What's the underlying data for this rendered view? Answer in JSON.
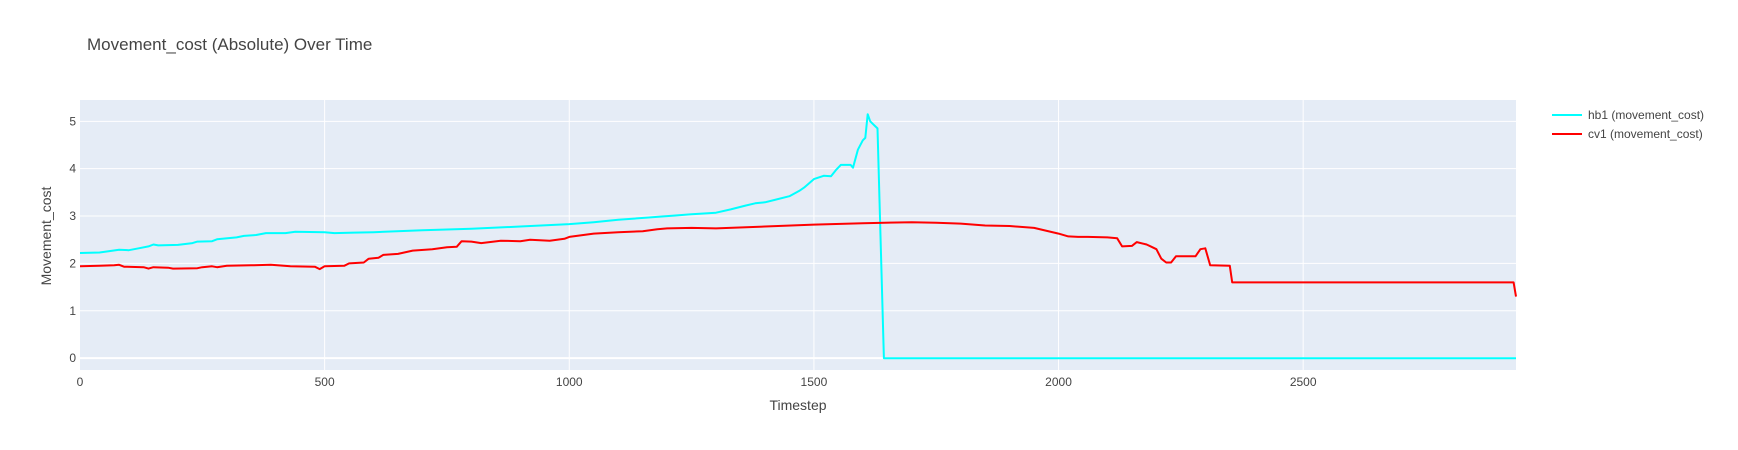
{
  "chart_data": {
    "type": "line",
    "title": "Movement_cost (Absolute) Over Time",
    "xlabel": "Timestep",
    "ylabel": "Movement_cost",
    "xlim": [
      0,
      2935
    ],
    "ylim": [
      -0.25,
      5.45
    ],
    "x_ticks": [
      0,
      500,
      1000,
      1500,
      2000,
      2500
    ],
    "y_ticks": [
      0,
      1,
      2,
      3,
      4,
      5
    ],
    "grid": true,
    "legend_position": "top-right, outside plot",
    "plot_background": "#E5ECF6",
    "grid_color": "#FFFFFF",
    "series": [
      {
        "name": "hb1 (movement_cost)",
        "color": "#00FFFF",
        "points": [
          [
            0,
            2.22
          ],
          [
            40,
            2.23
          ],
          [
            60,
            2.26
          ],
          [
            80,
            2.29
          ],
          [
            100,
            2.28
          ],
          [
            120,
            2.32
          ],
          [
            140,
            2.36
          ],
          [
            150,
            2.4
          ],
          [
            160,
            2.38
          ],
          [
            200,
            2.39
          ],
          [
            230,
            2.43
          ],
          [
            240,
            2.46
          ],
          [
            270,
            2.47
          ],
          [
            280,
            2.51
          ],
          [
            320,
            2.55
          ],
          [
            335,
            2.58
          ],
          [
            360,
            2.6
          ],
          [
            380,
            2.64
          ],
          [
            420,
            2.64
          ],
          [
            440,
            2.67
          ],
          [
            500,
            2.66
          ],
          [
            520,
            2.64
          ],
          [
            560,
            2.65
          ],
          [
            600,
            2.66
          ],
          [
            700,
            2.7
          ],
          [
            800,
            2.73
          ],
          [
            900,
            2.78
          ],
          [
            1000,
            2.83
          ],
          [
            1050,
            2.87
          ],
          [
            1100,
            2.92
          ],
          [
            1200,
            3.0
          ],
          [
            1250,
            3.04
          ],
          [
            1300,
            3.07
          ],
          [
            1330,
            3.14
          ],
          [
            1360,
            3.22
          ],
          [
            1380,
            3.27
          ],
          [
            1400,
            3.29
          ],
          [
            1420,
            3.34
          ],
          [
            1450,
            3.42
          ],
          [
            1470,
            3.53
          ],
          [
            1480,
            3.6
          ],
          [
            1500,
            3.78
          ],
          [
            1520,
            3.85
          ],
          [
            1535,
            3.84
          ],
          [
            1545,
            3.97
          ],
          [
            1555,
            4.08
          ],
          [
            1575,
            4.08
          ],
          [
            1580,
            4.02
          ],
          [
            1590,
            4.4
          ],
          [
            1600,
            4.6
          ],
          [
            1605,
            4.65
          ],
          [
            1610,
            5.15
          ],
          [
            1615,
            5.0
          ],
          [
            1620,
            4.95
          ],
          [
            1625,
            4.9
          ],
          [
            1630,
            4.85
          ],
          [
            1643,
            0.0
          ],
          [
            2935,
            0.0
          ]
        ]
      },
      {
        "name": "cv1 (movement_cost)",
        "color": "#FF0000",
        "points": [
          [
            0,
            1.94
          ],
          [
            40,
            1.95
          ],
          [
            70,
            1.96
          ],
          [
            80,
            1.97
          ],
          [
            90,
            1.93
          ],
          [
            130,
            1.92
          ],
          [
            140,
            1.89
          ],
          [
            150,
            1.92
          ],
          [
            180,
            1.91
          ],
          [
            190,
            1.89
          ],
          [
            240,
            1.9
          ],
          [
            250,
            1.92
          ],
          [
            270,
            1.94
          ],
          [
            280,
            1.92
          ],
          [
            300,
            1.95
          ],
          [
            350,
            1.96
          ],
          [
            390,
            1.97
          ],
          [
            430,
            1.94
          ],
          [
            480,
            1.93
          ],
          [
            490,
            1.88
          ],
          [
            500,
            1.94
          ],
          [
            540,
            1.95
          ],
          [
            550,
            2.0
          ],
          [
            580,
            2.02
          ],
          [
            590,
            2.1
          ],
          [
            610,
            2.12
          ],
          [
            620,
            2.18
          ],
          [
            650,
            2.2
          ],
          [
            680,
            2.27
          ],
          [
            720,
            2.3
          ],
          [
            750,
            2.34
          ],
          [
            770,
            2.35
          ],
          [
            780,
            2.47
          ],
          [
            800,
            2.46
          ],
          [
            820,
            2.43
          ],
          [
            860,
            2.48
          ],
          [
            900,
            2.47
          ],
          [
            920,
            2.5
          ],
          [
            960,
            2.48
          ],
          [
            990,
            2.52
          ],
          [
            1000,
            2.56
          ],
          [
            1050,
            2.63
          ],
          [
            1100,
            2.66
          ],
          [
            1150,
            2.68
          ],
          [
            1180,
            2.72
          ],
          [
            1200,
            2.74
          ],
          [
            1250,
            2.75
          ],
          [
            1300,
            2.74
          ],
          [
            1400,
            2.78
          ],
          [
            1500,
            2.82
          ],
          [
            1600,
            2.85
          ],
          [
            1700,
            2.87
          ],
          [
            1750,
            2.86
          ],
          [
            1800,
            2.84
          ],
          [
            1850,
            2.8
          ],
          [
            1900,
            2.79
          ],
          [
            1950,
            2.75
          ],
          [
            2000,
            2.63
          ],
          [
            2020,
            2.57
          ],
          [
            2040,
            2.56
          ],
          [
            2060,
            2.56
          ],
          [
            2100,
            2.55
          ],
          [
            2120,
            2.53
          ],
          [
            2130,
            2.36
          ],
          [
            2150,
            2.37
          ],
          [
            2160,
            2.45
          ],
          [
            2180,
            2.4
          ],
          [
            2190,
            2.35
          ],
          [
            2200,
            2.3
          ],
          [
            2210,
            2.1
          ],
          [
            2220,
            2.02
          ],
          [
            2230,
            2.02
          ],
          [
            2240,
            2.15
          ],
          [
            2280,
            2.15
          ],
          [
            2290,
            2.3
          ],
          [
            2300,
            2.32
          ],
          [
            2310,
            1.96
          ],
          [
            2350,
            1.95
          ],
          [
            2355,
            1.6
          ],
          [
            2930,
            1.6
          ],
          [
            2935,
            1.3
          ]
        ]
      }
    ]
  }
}
